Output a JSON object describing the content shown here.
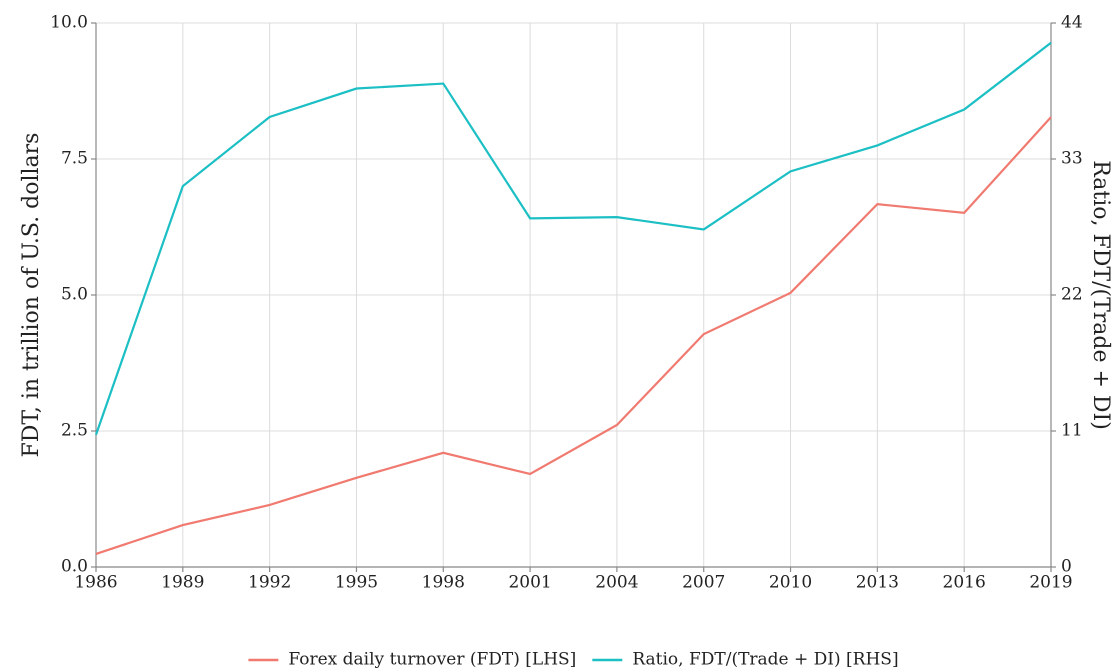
{
  "chart_data": {
    "type": "line",
    "ylabel": "FDT, in trillion of U.S. dollars",
    "y2label": "Ratio, FDT/(Trade + DI)",
    "x": [
      1986,
      1989,
      1992,
      1995,
      1998,
      2001,
      2004,
      2007,
      2010,
      2013,
      2016,
      2019
    ],
    "xlim": [
      1986,
      2019
    ],
    "xticks": [
      1986,
      1989,
      1992,
      1995,
      1998,
      2001,
      2004,
      2007,
      2010,
      2013,
      2016,
      2019
    ],
    "ylim": [
      0,
      10
    ],
    "yticks": [
      {
        "value": 0,
        "label": "0.0"
      },
      2.5,
      {
        "value": 5,
        "label": "5.0"
      },
      7.5,
      {
        "value": 10,
        "label": "10.0"
      }
    ],
    "y2lim": [
      0,
      44
    ],
    "y2ticks": [
      0,
      11,
      22,
      33,
      44
    ],
    "grid": true,
    "legend": "bottom",
    "series": [
      {
        "name": "Forex daily turnover (FDT) [LHS]",
        "color": "#f07a70",
        "values": [
          0.24,
          0.77,
          1.14,
          1.64,
          2.1,
          1.71,
          2.61,
          4.28,
          5.04,
          6.67,
          6.51,
          8.27
        ]
      },
      {
        "name": "Ratio, FDT/(Trade + DI) [RHS]",
        "color": "#1bbfc4",
        "axis": "y2",
        "values": [
          10.7,
          30.8,
          36.4,
          38.7,
          39.1,
          28.2,
          28.3,
          27.3,
          32.0,
          34.1,
          37.0,
          42.4
        ]
      }
    ]
  }
}
